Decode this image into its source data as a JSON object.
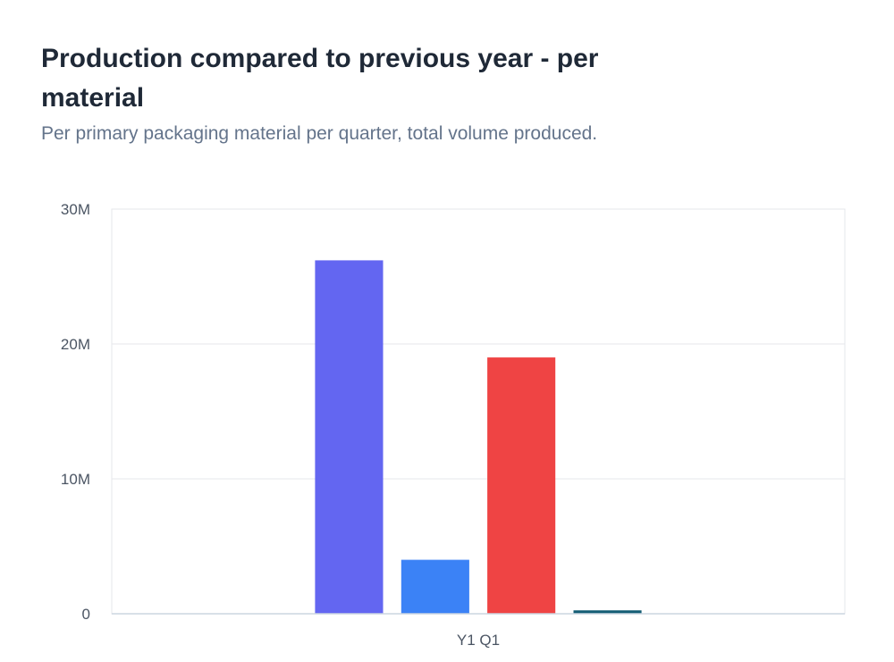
{
  "header": {
    "title": "Production compared to previous year - per material",
    "subtitle": "Per primary packaging material per quarter, total volume produced."
  },
  "chart_data": {
    "type": "bar",
    "title": "Production compared to previous year - per material",
    "subtitle": "Per primary packaging material per quarter, total volume produced.",
    "categories": [
      "Y1 Q1"
    ],
    "series": [
      {
        "values": [
          26200000
        ],
        "color": "#6366f1"
      },
      {
        "values": [
          4000000
        ],
        "color": "#3b82f6"
      },
      {
        "values": [
          19000000
        ],
        "color": "#ef4444"
      },
      {
        "values": [
          250000
        ],
        "color": "#155e75"
      }
    ],
    "ylim": [
      0,
      30000000
    ],
    "yticks": [
      {
        "value": 0,
        "label": "0"
      },
      {
        "value": 10000000,
        "label": "10M"
      },
      {
        "value": 20000000,
        "label": "20M"
      },
      {
        "value": 30000000,
        "label": "30M"
      }
    ],
    "xlabel": "",
    "ylabel": "",
    "grid": true,
    "legend": false
  }
}
